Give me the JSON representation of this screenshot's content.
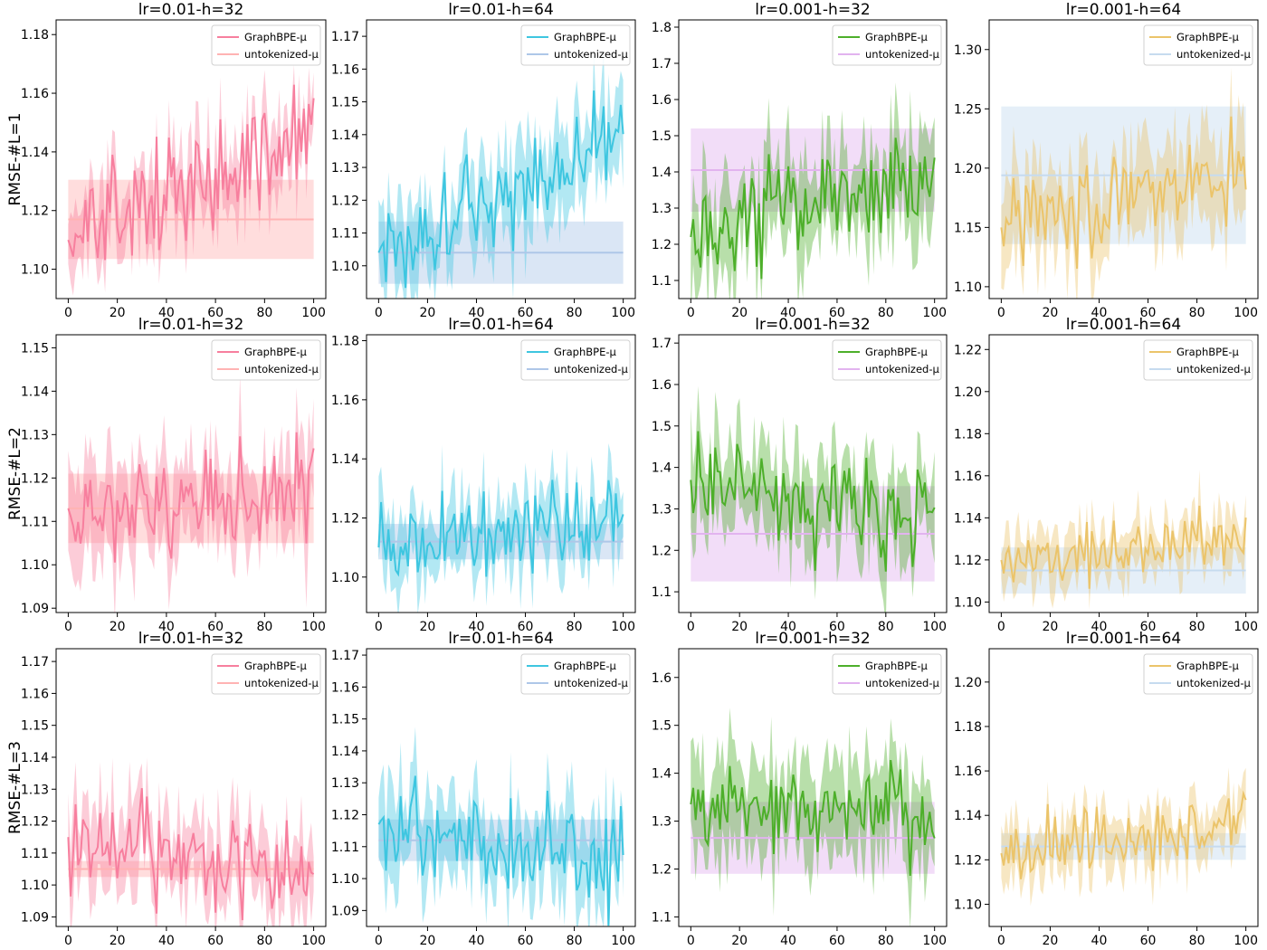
{
  "chart_data": {
    "type": "line",
    "x_ticks": [
      0,
      20,
      40,
      60,
      80,
      100
    ],
    "row_labels": [
      "RMSE-#L=1",
      "RMSE-#L=2",
      "RMSE-#L=3"
    ],
    "legend_placement": "top-right",
    "panels": [
      {
        "title": "lr=0.01-h=32",
        "ylim": [
          1.09,
          1.185
        ],
        "yticks": [
          "1.10",
          "1.12",
          "1.14",
          "1.16",
          "1.18"
        ],
        "series": [
          {
            "name": "GraphBPE-μ",
            "color": "#f77f9e",
            "start": 1.11,
            "end": 1.145,
            "noise": 0.009,
            "band": 0.012
          },
          {
            "name": "untokenized-μ",
            "color": "#ffb3b3",
            "mean": 1.117,
            "std": 0.0135
          }
        ]
      },
      {
        "title": "lr=0.01-h=64",
        "ylim": [
          1.09,
          1.175
        ],
        "yticks": [
          "1.10",
          "1.11",
          "1.12",
          "1.13",
          "1.14",
          "1.15",
          "1.16",
          "1.17"
        ],
        "series": [
          {
            "name": "GraphBPE-μ",
            "color": "#3ec6e0",
            "start": 1.104,
            "end": 1.14,
            "noise": 0.008,
            "band": 0.012
          },
          {
            "name": "untokenized-μ",
            "color": "#aec7e8",
            "mean": 1.104,
            "std": 0.0095
          }
        ]
      },
      {
        "title": "lr=0.001-h=32",
        "ylim": [
          1.05,
          1.82
        ],
        "yticks": [
          "1.1",
          "1.2",
          "1.3",
          "1.4",
          "1.5",
          "1.6",
          "1.7",
          "1.8"
        ],
        "series": [
          {
            "name": "GraphBPE-μ",
            "color": "#4daf2a",
            "start": 1.22,
            "end": 1.4,
            "noise": 0.07,
            "band": 0.12
          },
          {
            "name": "untokenized-μ",
            "color": "#e2b3ef",
            "mean": 1.405,
            "std": 0.115
          }
        ]
      },
      {
        "title": "lr=0.001-h=64",
        "ylim": [
          1.09,
          1.325
        ],
        "yticks": [
          "1.10",
          "1.15",
          "1.20",
          "1.25",
          "1.30"
        ],
        "series": [
          {
            "name": "GraphBPE-μ",
            "color": "#ebc46a",
            "start": 1.15,
            "end": 1.2,
            "noise": 0.02,
            "band": 0.035
          },
          {
            "name": "untokenized-μ",
            "color": "#c6dbef",
            "mean": 1.194,
            "std": 0.058
          }
        ]
      },
      {
        "title": "lr=0.01-h=32",
        "ylim": [
          1.089,
          1.153
        ],
        "yticks": [
          "1.09",
          "1.10",
          "1.11",
          "1.12",
          "1.13",
          "1.14",
          "1.15"
        ],
        "series": [
          {
            "name": "GraphBPE-μ",
            "color": "#f77f9e",
            "start": 1.113,
            "end": 1.117,
            "noise": 0.006,
            "band": 0.01
          },
          {
            "name": "untokenized-μ",
            "color": "#ffb3b3",
            "mean": 1.113,
            "std": 0.008
          }
        ]
      },
      {
        "title": "lr=0.01-h=64",
        "ylim": [
          1.088,
          1.182
        ],
        "yticks": [
          "1.10",
          "1.12",
          "1.14",
          "1.16",
          "1.18"
        ],
        "series": [
          {
            "name": "GraphBPE-μ",
            "color": "#3ec6e0",
            "start": 1.11,
            "end": 1.12,
            "noise": 0.007,
            "band": 0.011
          },
          {
            "name": "untokenized-μ",
            "color": "#aec7e8",
            "mean": 1.112,
            "std": 0.006
          }
        ]
      },
      {
        "title": "lr=0.001-h=32",
        "ylim": [
          1.05,
          1.72
        ],
        "yticks": [
          "1.1",
          "1.2",
          "1.3",
          "1.4",
          "1.5",
          "1.6",
          "1.7"
        ],
        "series": [
          {
            "name": "GraphBPE-μ",
            "color": "#4daf2a",
            "start": 1.37,
            "end": 1.26,
            "noise": 0.06,
            "band": 0.1
          },
          {
            "name": "untokenized-μ",
            "color": "#e2b3ef",
            "mean": 1.24,
            "std": 0.115
          }
        ]
      },
      {
        "title": "lr=0.001-h=64",
        "ylim": [
          1.095,
          1.227
        ],
        "yticks": [
          "1.10",
          "1.12",
          "1.14",
          "1.16",
          "1.18",
          "1.20",
          "1.22"
        ],
        "series": [
          {
            "name": "GraphBPE-μ",
            "color": "#ebc46a",
            "start": 1.12,
            "end": 1.13,
            "noise": 0.008,
            "band": 0.012
          },
          {
            "name": "untokenized-μ",
            "color": "#c6dbef",
            "mean": 1.115,
            "std": 0.011
          }
        ]
      },
      {
        "title": "lr=0.01-h=32",
        "ylim": [
          1.087,
          1.174
        ],
        "yticks": [
          "1.09",
          "1.10",
          "1.11",
          "1.12",
          "1.13",
          "1.14",
          "1.15",
          "1.16",
          "1.17"
        ],
        "series": [
          {
            "name": "GraphBPE-μ",
            "color": "#f77f9e",
            "start": 1.115,
            "end": 1.105,
            "noise": 0.008,
            "band": 0.012
          },
          {
            "name": "untokenized-μ",
            "color": "#ffb3b3",
            "mean": 1.105,
            "std": 0.0025
          }
        ]
      },
      {
        "title": "lr=0.01-h=64",
        "ylim": [
          1.085,
          1.172
        ],
        "yticks": [
          "1.09",
          "1.10",
          "1.11",
          "1.12",
          "1.13",
          "1.14",
          "1.15",
          "1.16",
          "1.17"
        ],
        "series": [
          {
            "name": "GraphBPE-μ",
            "color": "#3ec6e0",
            "start": 1.117,
            "end": 1.105,
            "noise": 0.007,
            "band": 0.012
          },
          {
            "name": "untokenized-μ",
            "color": "#aec7e8",
            "mean": 1.112,
            "std": 0.0065
          }
        ]
      },
      {
        "title": "lr=0.001-h=32",
        "ylim": [
          1.08,
          1.66
        ],
        "yticks": [
          "1.1",
          "1.2",
          "1.3",
          "1.4",
          "1.5",
          "1.6"
        ],
        "series": [
          {
            "name": "GraphBPE-μ",
            "color": "#4daf2a",
            "start": 1.335,
            "end": 1.32,
            "noise": 0.05,
            "band": 0.09
          },
          {
            "name": "untokenized-μ",
            "color": "#e2b3ef",
            "mean": 1.265,
            "std": 0.075
          }
        ]
      },
      {
        "title": "lr=0.001-h=64",
        "ylim": [
          1.09,
          1.215
        ],
        "yticks": [
          "1.10",
          "1.12",
          "1.14",
          "1.16",
          "1.18",
          "1.20"
        ],
        "series": [
          {
            "name": "GraphBPE-μ",
            "color": "#ebc46a",
            "start": 1.123,
            "end": 1.137,
            "noise": 0.007,
            "band": 0.011
          },
          {
            "name": "untokenized-μ",
            "color": "#c6dbef",
            "mean": 1.126,
            "std": 0.006
          }
        ]
      }
    ]
  }
}
